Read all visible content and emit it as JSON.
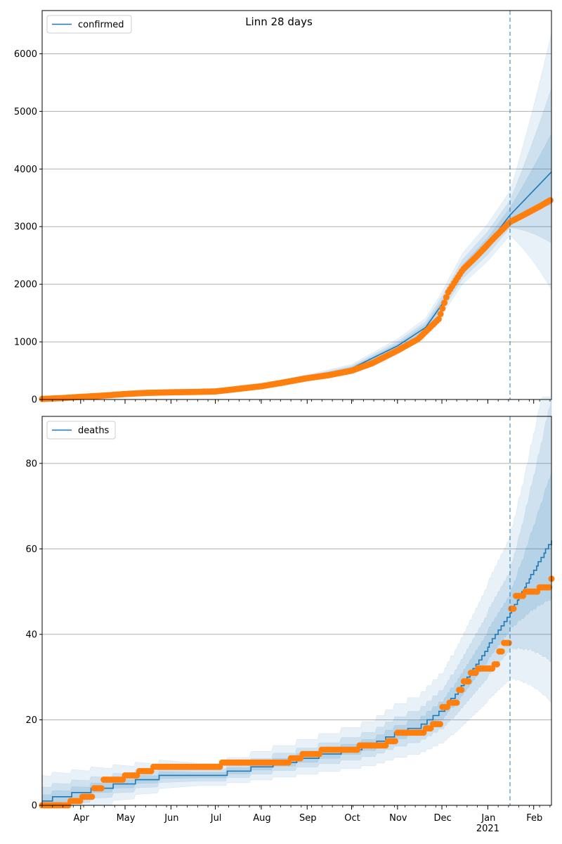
{
  "figure": {
    "title": "Linn 28 days",
    "colors": {
      "model": "#1f77b4",
      "observed": "#ff7f0e",
      "band": "#1f77b4",
      "grid": "#b0b0b0",
      "forecast_line": "#1f77b4"
    }
  },
  "chart_data": [
    {
      "type": "line",
      "name": "confirmed-panel",
      "legend": "confirmed",
      "legend_position": "top-left",
      "grid": "horizontal",
      "ylim": [
        0,
        6750
      ],
      "yticks": [
        0,
        1000,
        2000,
        3000,
        4000,
        5000,
        6000
      ],
      "forecast_start": "2021-01-16",
      "model_line": {
        "name": "confirmed",
        "x": [
          "2020-03-06",
          "2020-04-01",
          "2020-05-01",
          "2020-06-01",
          "2020-07-01",
          "2020-08-01",
          "2020-09-01",
          "2020-10-01",
          "2020-11-01",
          "2020-11-20",
          "2020-12-01",
          "2020-12-15",
          "2021-01-01",
          "2021-01-16",
          "2021-02-13"
        ],
        "y": [
          10,
          40,
          95,
          125,
          140,
          240,
          380,
          540,
          930,
          1250,
          1650,
          2250,
          2700,
          3200,
          3950
        ]
      },
      "band_widths": [
        [
          0.04,
          0.08
        ],
        [
          0.08,
          0.17
        ],
        [
          0.13,
          0.28
        ]
      ],
      "observed": {
        "x": [
          "2020-03-06",
          "2020-03-20",
          "2020-04-01",
          "2020-04-15",
          "2020-05-01",
          "2020-05-15",
          "2020-06-01",
          "2020-06-15",
          "2020-07-01",
          "2020-07-15",
          "2020-08-01",
          "2020-08-15",
          "2020-09-01",
          "2020-09-15",
          "2020-10-01",
          "2020-10-15",
          "2020-11-01",
          "2020-11-15",
          "2020-11-29",
          "2020-12-05",
          "2020-12-15",
          "2020-12-25",
          "2021-01-05",
          "2021-01-16",
          "2021-01-25",
          "2021-02-05",
          "2021-02-13"
        ],
        "y": [
          10,
          25,
          45,
          65,
          95,
          115,
          125,
          130,
          140,
          180,
          230,
          290,
          370,
          420,
          500,
          630,
          850,
          1050,
          1400,
          1850,
          2250,
          2500,
          2800,
          3080,
          3200,
          3350,
          3470
        ]
      }
    },
    {
      "type": "line",
      "name": "deaths-panel",
      "legend": "deaths",
      "legend_position": "top-left",
      "grid": "horizontal",
      "ylim": [
        0,
        91
      ],
      "yticks": [
        0,
        20,
        40,
        60,
        80
      ],
      "forecast_start": "2021-01-16",
      "model_line": {
        "name": "deaths",
        "x": [
          "2020-03-06",
          "2020-03-20",
          "2020-04-01",
          "2020-04-15",
          "2020-05-01",
          "2020-05-15",
          "2020-06-01",
          "2020-07-01",
          "2020-08-01",
          "2020-09-01",
          "2020-10-01",
          "2020-10-15",
          "2020-11-01",
          "2020-11-15",
          "2020-12-01",
          "2020-12-15",
          "2021-01-01",
          "2021-01-16",
          "2021-02-13"
        ],
        "y": [
          1,
          2,
          3,
          4,
          5,
          6,
          7,
          7,
          9,
          11,
          13,
          14,
          17,
          18,
          22,
          28,
          37,
          45,
          62
        ]
      },
      "band_widths": [
        [
          0.1,
          0.15
        ],
        [
          0.22,
          0.32
        ],
        [
          0.4,
          0.5
        ]
      ],
      "observed": {
        "x": [
          "2020-03-06",
          "2020-03-15",
          "2020-03-25",
          "2020-04-01",
          "2020-04-10",
          "2020-04-16",
          "2020-04-22",
          "2020-05-01",
          "2020-05-10",
          "2020-05-20",
          "2020-06-01",
          "2020-07-05",
          "2020-08-10",
          "2020-08-20",
          "2020-08-28",
          "2020-09-10",
          "2020-10-05",
          "2020-10-25",
          "2020-11-01",
          "2020-11-20",
          "2020-11-25",
          "2020-12-01",
          "2020-12-05",
          "2020-12-12",
          "2020-12-15",
          "2020-12-20",
          "2020-12-25",
          "2021-01-02",
          "2021-01-05",
          "2021-01-08",
          "2021-01-12",
          "2021-01-16",
          "2021-01-20",
          "2021-01-25",
          "2021-02-01",
          "2021-02-05",
          "2021-02-13"
        ],
        "y": [
          0,
          0,
          1,
          2,
          4,
          6,
          6,
          7,
          8,
          9,
          9,
          10,
          10,
          11,
          12,
          13,
          14,
          15,
          17,
          18,
          19,
          23,
          24,
          27,
          29,
          31,
          32,
          32,
          33,
          36,
          38,
          46,
          49,
          50,
          50,
          51,
          53
        ]
      }
    }
  ],
  "x_axis": {
    "start": "2020-03-06",
    "end": "2021-02-13",
    "month_labels": [
      {
        "date": "2020-04-01",
        "label": "Apr"
      },
      {
        "date": "2020-05-01",
        "label": "May"
      },
      {
        "date": "2020-06-01",
        "label": "Jun"
      },
      {
        "date": "2020-07-01",
        "label": "Jul"
      },
      {
        "date": "2020-08-01",
        "label": "Aug"
      },
      {
        "date": "2020-09-01",
        "label": "Sep"
      },
      {
        "date": "2020-10-01",
        "label": "Oct"
      },
      {
        "date": "2020-11-01",
        "label": "Nov"
      },
      {
        "date": "2020-12-01",
        "label": "Dec"
      },
      {
        "date": "2021-01-01",
        "label": "Jan"
      },
      {
        "date": "2021-02-01",
        "label": "Feb"
      }
    ],
    "year_label": {
      "date": "2021-01-01",
      "label": "2021"
    }
  }
}
